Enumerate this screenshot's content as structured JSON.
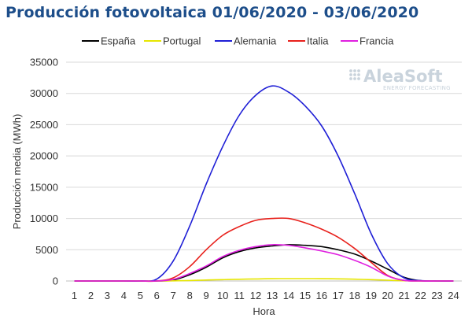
{
  "logo": {
    "main": "AleaSoft",
    "sub": "ENERGY FORECASTING"
  },
  "chart_data": {
    "type": "line",
    "title": "Producción fotovoltaica 01/06/2020 - 03/06/2020",
    "xlabel": "Hora",
    "ylabel": "Producción media (MWh)",
    "categories": [
      "1",
      "2",
      "3",
      "4",
      "5",
      "6",
      "7",
      "8",
      "9",
      "10",
      "11",
      "12",
      "13",
      "14",
      "15",
      "16",
      "17",
      "18",
      "19",
      "20",
      "21",
      "22",
      "23",
      "24"
    ],
    "ylim": [
      0,
      35000
    ],
    "yticks": [
      0,
      5000,
      10000,
      15000,
      20000,
      25000,
      30000,
      35000
    ],
    "ytick_labels": [
      "0",
      "5000",
      "10000",
      "15000",
      "20000",
      "25000",
      "30000",
      "35000"
    ],
    "grid": true,
    "legend_position": "top",
    "series": [
      {
        "name": "España",
        "color": "#000000",
        "values": [
          0,
          0,
          0,
          0,
          0,
          0,
          150,
          1000,
          2200,
          3700,
          4700,
          5300,
          5600,
          5800,
          5700,
          5500,
          5000,
          4300,
          3200,
          1900,
          600,
          50,
          0,
          0
        ]
      },
      {
        "name": "Portugal",
        "color": "#e6e600",
        "values": [
          0,
          0,
          0,
          0,
          0,
          0,
          20,
          80,
          150,
          220,
          280,
          330,
          370,
          380,
          380,
          370,
          340,
          290,
          210,
          120,
          40,
          5,
          0,
          0
        ]
      },
      {
        "name": "Alemania",
        "color": "#1f1fd6",
        "values": [
          0,
          0,
          0,
          0,
          0,
          300,
          3200,
          8800,
          15500,
          21500,
          26500,
          29700,
          31200,
          30200,
          28000,
          24800,
          20000,
          14000,
          7600,
          2800,
          500,
          50,
          0,
          0
        ]
      },
      {
        "name": "Italia",
        "color": "#e8211c",
        "values": [
          0,
          0,
          0,
          0,
          0,
          0,
          500,
          2300,
          5000,
          7300,
          8700,
          9700,
          10000,
          10000,
          9300,
          8300,
          7000,
          5200,
          3000,
          900,
          100,
          0,
          0,
          0
        ]
      },
      {
        "name": "Francia",
        "color": "#e020e0",
        "values": [
          0,
          0,
          0,
          0,
          0,
          0,
          250,
          1200,
          2400,
          3900,
          4900,
          5500,
          5800,
          5700,
          5300,
          4800,
          4200,
          3300,
          2200,
          800,
          100,
          0,
          0,
          0
        ]
      }
    ]
  }
}
